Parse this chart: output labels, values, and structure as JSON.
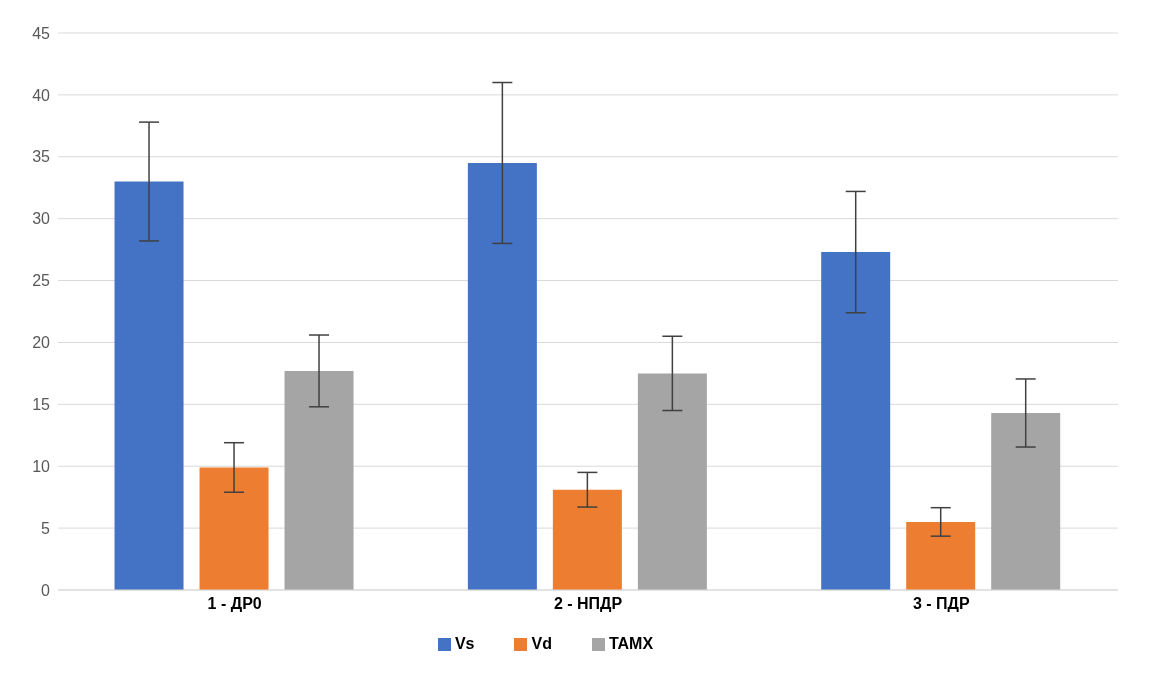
{
  "chart_data": {
    "type": "bar",
    "categories": [
      "1 - ДР0",
      "2 - НПДР",
      "3 - ПДР"
    ],
    "series": [
      {
        "name": "Vs",
        "color": "#4472c4",
        "values": [
          33,
          34.5,
          27.3
        ],
        "errors": [
          4.8,
          6.5,
          4.9
        ]
      },
      {
        "name": "Vd",
        "color": "#ed7d31",
        "values": [
          9.9,
          8.1,
          5.5
        ],
        "errors": [
          2,
          1.4,
          1.15
        ]
      },
      {
        "name": "TAMX",
        "color": "#a5a5a5",
        "values": [
          17.7,
          17.5,
          14.3
        ],
        "errors": [
          2.9,
          3,
          2.75
        ]
      }
    ],
    "ylim": [
      0,
      45
    ],
    "yticks": [
      0,
      5,
      10,
      15,
      20,
      25,
      30,
      35,
      40,
      45
    ],
    "grid": "y",
    "legend": "bottom"
  }
}
